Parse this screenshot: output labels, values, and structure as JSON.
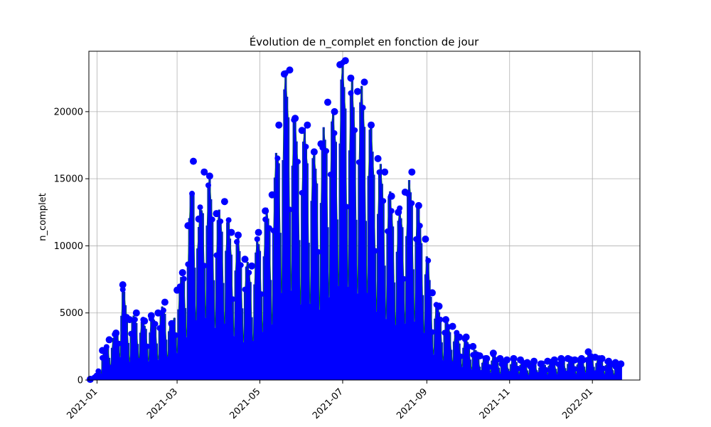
{
  "chart_data": {
    "type": "line",
    "title": "Évolution de n_complet en fonction de jour",
    "xlabel": "",
    "ylabel": "n_complet",
    "x_range": [
      "2020-12-26",
      "2022-02-05"
    ],
    "ylim": [
      0,
      24500
    ],
    "grid": true,
    "yticks": [
      0,
      5000,
      10000,
      15000,
      20000
    ],
    "ytick_labels": [
      "0",
      "5000",
      "10000",
      "15000",
      "20000"
    ],
    "xticks": [
      "2021-01-01",
      "2021-03-01",
      "2021-05-01",
      "2021-07-01",
      "2021-09-01",
      "2021-11-01",
      "2022-01-01"
    ],
    "xtick_labels": [
      "2021-01",
      "2021-03",
      "2021-05",
      "2021-07",
      "2021-09",
      "2021-11",
      "2022-01"
    ],
    "colors": {
      "marker": "#0000ff",
      "line": "#008000"
    },
    "series": [
      {
        "x": [
          "2020-12-27",
          "2021-01-01",
          "2021-01-05",
          "2021-01-10",
          "2021-01-15",
          "2021-01-20",
          "2021-01-25",
          "2021-01-30",
          "2021-02-05",
          "2021-02-10",
          "2021-02-15",
          "2021-02-20",
          "2021-02-25",
          "2021-03-01",
          "2021-03-05",
          "2021-03-09",
          "2021-03-13",
          "2021-03-17",
          "2021-03-21",
          "2021-03-25",
          "2021-03-30",
          "2021-04-05",
          "2021-04-10",
          "2021-04-15",
          "2021-04-20",
          "2021-04-25",
          "2021-04-30",
          "2021-05-05",
          "2021-05-10",
          "2021-05-15",
          "2021-05-19",
          "2021-05-23",
          "2021-05-27",
          "2021-06-01",
          "2021-06-05",
          "2021-06-10",
          "2021-06-15",
          "2021-06-20",
          "2021-06-25",
          "2021-06-29",
          "2021-07-03",
          "2021-07-07",
          "2021-07-12",
          "2021-07-17",
          "2021-07-22",
          "2021-07-27",
          "2021-08-01",
          "2021-08-06",
          "2021-08-11",
          "2021-08-16",
          "2021-08-21",
          "2021-08-26",
          "2021-08-31",
          "2021-09-05",
          "2021-09-10",
          "2021-09-15",
          "2021-09-20",
          "2021-09-25",
          "2021-09-30",
          "2021-10-05",
          "2021-10-10",
          "2021-10-15",
          "2021-10-20",
          "2021-10-25",
          "2021-10-30",
          "2021-11-04",
          "2021-11-09",
          "2021-11-14",
          "2021-11-19",
          "2021-11-24",
          "2021-11-29",
          "2021-12-04",
          "2021-12-09",
          "2021-12-14",
          "2021-12-19",
          "2021-12-24",
          "2021-12-29",
          "2022-01-03",
          "2022-01-08",
          "2022-01-13",
          "2022-01-18",
          "2022-01-22"
        ],
        "values": [
          50,
          300,
          2200,
          3000,
          3500,
          7100,
          4500,
          5000,
          4400,
          4800,
          5000,
          5800,
          4200,
          6700,
          8000,
          11500,
          16300,
          12000,
          15500,
          15200,
          12400,
          13300,
          11000,
          10800,
          9000,
          8500,
          11000,
          12600,
          13800,
          19000,
          22800,
          23100,
          19500,
          18600,
          19000,
          17000,
          17600,
          20700,
          20000,
          23500,
          23800,
          22500,
          21500,
          22200,
          19000,
          16500,
          15500,
          13700,
          12500,
          14000,
          15500,
          13000,
          10500,
          6500,
          5500,
          4500,
          4000,
          3200,
          3200,
          2500,
          1800,
          1600,
          2000,
          1600,
          1500,
          1600,
          1500,
          1300,
          1400,
          1200,
          1400,
          1500,
          1600,
          1600,
          1500,
          1600,
          2100,
          1700,
          1600,
          1400,
          1300,
          1200
        ]
      }
    ]
  }
}
